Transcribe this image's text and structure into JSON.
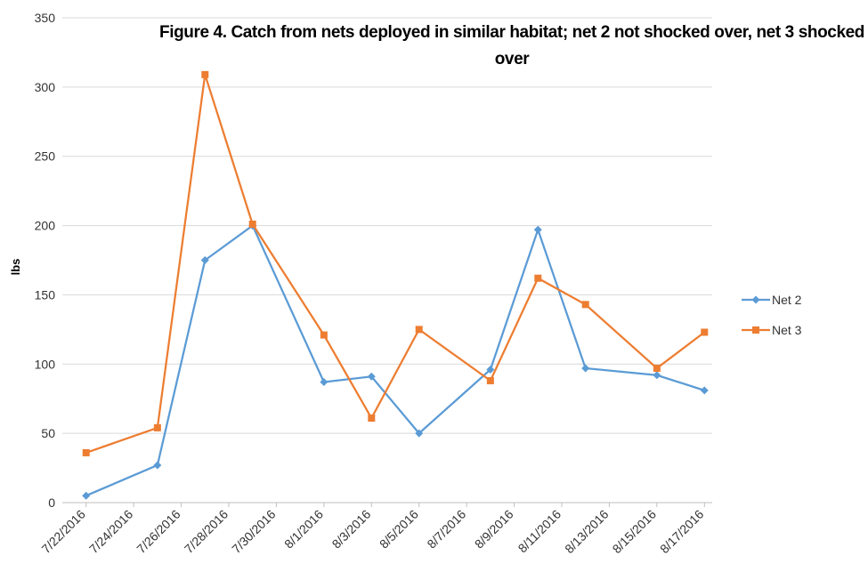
{
  "chart_data": {
    "type": "line",
    "title": "Figure 4.  Catch from nets deployed in similar habitat; net 2 not shocked over, net 3 shocked over",
    "y_label": "lbs",
    "x": [
      "7/22/2016",
      "7/25/2016",
      "7/27/2016",
      "7/29/2016",
      "8/1/2016",
      "8/3/2016",
      "8/5/2016",
      "8/8/2016",
      "8/10/2016",
      "8/12/2016",
      "8/15/2016",
      "8/17/2016"
    ],
    "series": [
      {
        "name": "Net 2",
        "color": "#5b9bd5",
        "marker": "diamond",
        "values": [
          5,
          27,
          175,
          200,
          87,
          91,
          50,
          96,
          197,
          97,
          92,
          81
        ]
      },
      {
        "name": "Net 3",
        "color": "#ed7d31",
        "marker": "square",
        "values": [
          36,
          54,
          309,
          201,
          121,
          61,
          125,
          88,
          162,
          143,
          97,
          123
        ]
      }
    ],
    "xlim": [
      "7/21/2016",
      "8/18/2016"
    ],
    "xticks": [
      "7/22/2016",
      "7/24/2016",
      "7/26/2016",
      "7/28/2016",
      "7/30/2016",
      "8/1/2016",
      "8/3/2016",
      "8/5/2016",
      "8/7/2016",
      "8/9/2016",
      "8/11/2016",
      "8/13/2016",
      "8/15/2016",
      "8/17/2016"
    ],
    "ylim": [
      0,
      350
    ],
    "yticks": [
      0,
      50,
      100,
      150,
      200,
      250,
      300,
      350
    ],
    "grid": true,
    "legend": "right"
  }
}
